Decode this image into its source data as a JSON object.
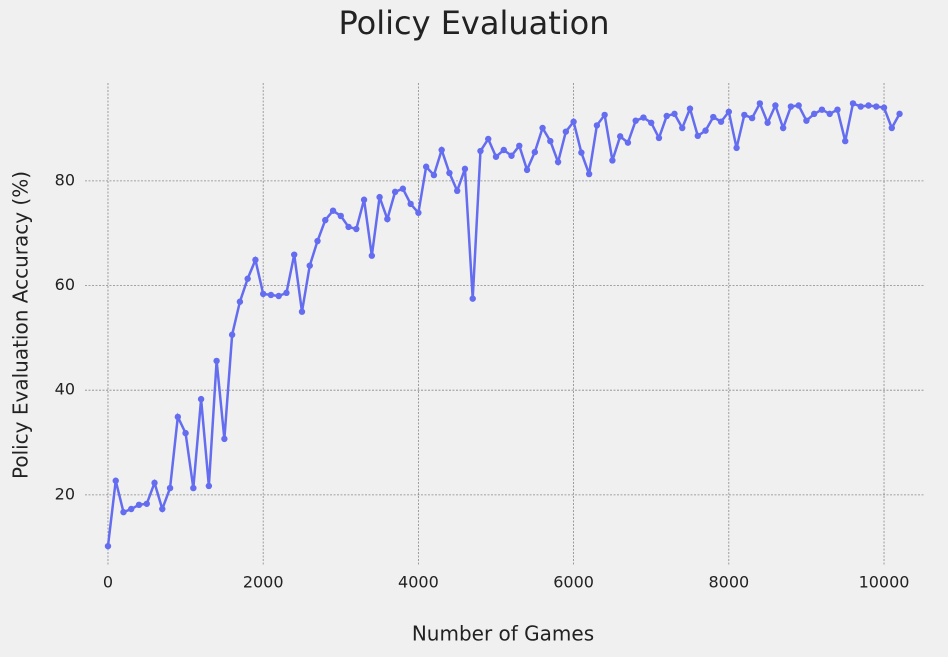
{
  "chart_data": {
    "type": "line",
    "title": "Policy Evaluation",
    "x_label": "Number of Games",
    "y_label": "Policy Evaluation Accuracy (%)",
    "x": [
      0,
      100,
      200,
      300,
      400,
      500,
      600,
      700,
      800,
      900,
      1000,
      1100,
      1200,
      1300,
      1400,
      1500,
      1600,
      1700,
      1800,
      1900,
      2000,
      2100,
      2200,
      2300,
      2400,
      2500,
      2600,
      2700,
      2800,
      2900,
      3000,
      3100,
      3200,
      3300,
      3400,
      3500,
      3600,
      3700,
      3800,
      3900,
      4000,
      4100,
      4200,
      4300,
      4400,
      4500,
      4600,
      4700,
      4800,
      4900,
      5000,
      5100,
      5200,
      5300,
      5400,
      5500,
      5600,
      5700,
      5800,
      5900,
      6000,
      6100,
      6200,
      6300,
      6400,
      6500,
      6600,
      6700,
      6800,
      6900,
      7000,
      7100,
      7200,
      7300,
      7400,
      7500,
      7600,
      7700,
      7800,
      7900,
      8000,
      8100,
      8200,
      8300,
      8400,
      8500,
      8600,
      8700,
      8800,
      8900,
      9000,
      9100,
      9200,
      9300,
      9400,
      9500,
      9600,
      9700,
      9800,
      9900,
      10000,
      10100,
      10200
    ],
    "series": [
      {
        "name": "Policy Evaluation Accuracy",
        "color": "#646cf0",
        "values": [
          10.2,
          22.7,
          16.7,
          17.3,
          18.1,
          18.3,
          22.3,
          17.3,
          21.3,
          34.9,
          31.8,
          21.3,
          38.3,
          21.7,
          45.6,
          30.7,
          50.6,
          56.9,
          61.3,
          64.9,
          58.4,
          58.2,
          58.0,
          58.6,
          65.9,
          55.0,
          63.8,
          68.5,
          72.5,
          74.3,
          73.3,
          71.2,
          70.8,
          76.4,
          65.7,
          76.9,
          72.7,
          77.9,
          78.5,
          75.6,
          73.9,
          82.7,
          81.1,
          85.9,
          81.5,
          78.1,
          82.3,
          57.5,
          85.7,
          88.0,
          84.6,
          85.9,
          84.8,
          86.7,
          82.1,
          85.5,
          90.1,
          87.6,
          83.6,
          89.4,
          91.3,
          85.4,
          81.3,
          90.6,
          92.6,
          83.9,
          88.5,
          87.3,
          91.5,
          92.1,
          91.1,
          88.2,
          92.4,
          92.8,
          90.1,
          93.8,
          88.6,
          89.6,
          92.2,
          91.3,
          93.2,
          86.3,
          92.6,
          92.0,
          94.8,
          91.1,
          94.4,
          90.1,
          94.2,
          94.4,
          91.5,
          92.8,
          93.6,
          92.8,
          93.6,
          87.6,
          94.8,
          94.2,
          94.4,
          94.2,
          94.0,
          90.1,
          92.8
        ]
      }
    ],
    "xlim": [
      -296,
      10528
    ],
    "ylim": [
      6.6,
      98.7
    ],
    "xticks": [
      0,
      2000,
      4000,
      6000,
      8000,
      10000
    ],
    "yticks": [
      20,
      40,
      60,
      80
    ],
    "grid": true
  }
}
